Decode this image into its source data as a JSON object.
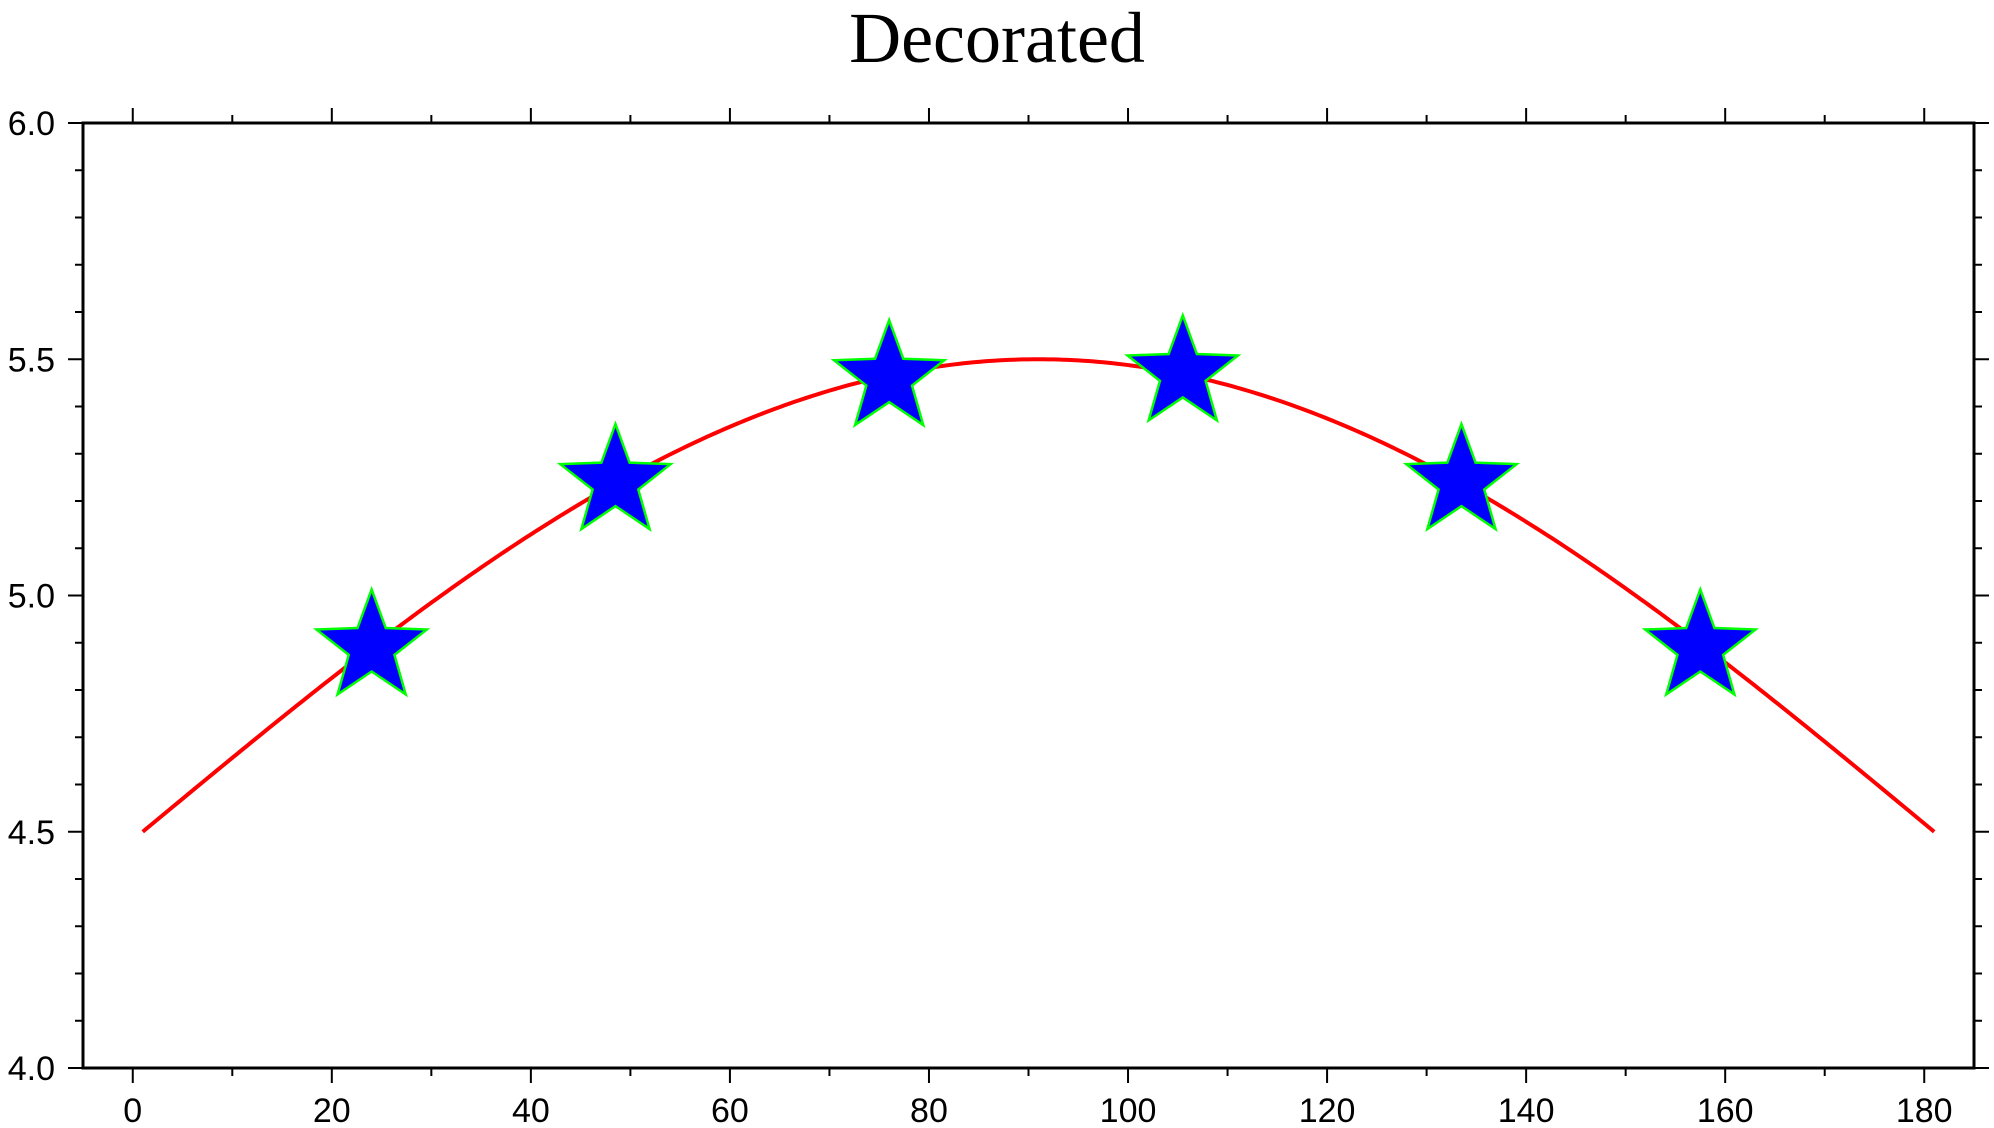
{
  "chart_data": {
    "type": "line",
    "title": "Decorated",
    "xlabel": "",
    "ylabel": "",
    "xlim": [
      -5,
      185
    ],
    "ylim": [
      4.0,
      6.0
    ],
    "x_ticks": [
      0,
      20,
      40,
      60,
      80,
      100,
      120,
      140,
      160,
      180
    ],
    "x_tick_labels": [
      "0",
      "20",
      "40",
      "60",
      "80",
      "100",
      "120",
      "140",
      "160",
      "180"
    ],
    "x_minor_step": 10,
    "y_ticks": [
      4.0,
      4.5,
      5.0,
      5.5,
      6.0
    ],
    "y_tick_labels": [
      "4.0",
      "4.5",
      "5.0",
      "5.5",
      "6.0"
    ],
    "y_minor_step": 0.1,
    "grid": false,
    "legend": "none",
    "series": [
      {
        "x_range": [
          1,
          181
        ],
        "function": "4.5 + sin(pi*(x-1)/180)",
        "color": "#ff0000"
      }
    ],
    "markers": {
      "symbol": "star",
      "fill": "#0000ff",
      "stroke": "#00ff00",
      "points": [
        {
          "x": 24,
          "y": 4.89
        },
        {
          "x": 48.5,
          "y": 5.24
        },
        {
          "x": 76,
          "y": 5.46
        },
        {
          "x": 105.5,
          "y": 5.47
        },
        {
          "x": 133.5,
          "y": 5.24
        },
        {
          "x": 157.5,
          "y": 4.89
        }
      ]
    }
  }
}
